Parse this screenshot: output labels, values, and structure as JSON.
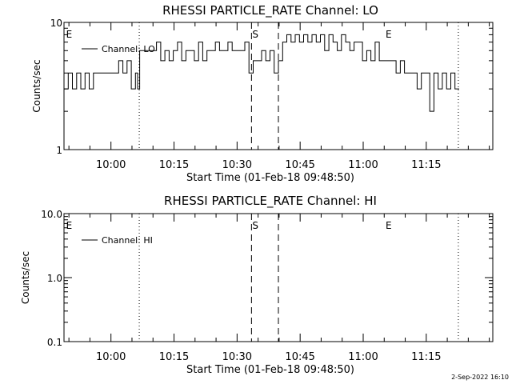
{
  "stamp": "2-Sep-2022 16:10",
  "chart_data": [
    {
      "type": "line",
      "title": "RHESSI PARTICLE_RATE Channel: LO",
      "xlabel": "Start Time (01-Feb-18 09:48:50)",
      "ylabel": "Counts/sec",
      "yscale": "log",
      "ylim": [
        1,
        10
      ],
      "xlim_min": [
        0,
        102
      ],
      "y_ticks": [
        {
          "v": 1,
          "label": "1"
        },
        {
          "v": 10,
          "label": "10"
        }
      ],
      "x_ticks": [
        {
          "t": 11.17,
          "label": "10:00"
        },
        {
          "t": 26.17,
          "label": "10:15"
        },
        {
          "t": 41.17,
          "label": "10:30"
        },
        {
          "t": 56.17,
          "label": "10:45"
        },
        {
          "t": 71.17,
          "label": "11:00"
        },
        {
          "t": 86.17,
          "label": "11:15"
        }
      ],
      "legend": "Channel: LO",
      "markers": [
        {
          "t": 0.3,
          "label": "E"
        },
        {
          "t": 44.6,
          "label": "S"
        },
        {
          "t": 76.3,
          "label": "E"
        }
      ],
      "dotted_lines": [
        17.9,
        93.8
      ],
      "dashed_lines": [
        44.6,
        51.0
      ],
      "series": [
        {
          "t": [
            0,
            1,
            2,
            3,
            4,
            5,
            6,
            7,
            8,
            9,
            10,
            11,
            12,
            13,
            14,
            15,
            16,
            17,
            17.5,
            18,
            19,
            20,
            21,
            22,
            23,
            24,
            25,
            26,
            27,
            28,
            29,
            30,
            31,
            32,
            33,
            34,
            35,
            36,
            37,
            38,
            39,
            40,
            41,
            42,
            43,
            44,
            45,
            46,
            47,
            48,
            49,
            50,
            51,
            52,
            53,
            54,
            55,
            56,
            57,
            58,
            59,
            60,
            61,
            62,
            63,
            64,
            65,
            66,
            67,
            68,
            69,
            70,
            71,
            72,
            73,
            74,
            75,
            76,
            77,
            78,
            79,
            80,
            81,
            82,
            83,
            84,
            85,
            86,
            87,
            88,
            89,
            90,
            91,
            92,
            93,
            94
          ],
          "y": [
            3,
            4,
            3,
            4,
            3,
            4,
            3,
            4,
            4,
            4,
            4,
            4,
            4,
            5,
            4,
            5,
            3,
            4,
            3,
            6,
            6,
            6,
            6,
            7,
            5,
            6,
            5,
            6,
            7,
            5,
            6,
            6,
            5,
            7,
            5,
            6,
            6,
            7,
            6,
            6,
            7,
            6,
            6,
            6,
            7,
            4,
            5,
            5,
            6,
            5,
            6,
            4,
            5,
            7,
            8,
            7,
            8,
            7,
            8,
            7,
            8,
            7,
            8,
            6,
            8,
            7,
            6,
            8,
            7,
            6,
            7,
            7,
            5,
            6,
            5,
            7,
            5,
            5,
            5,
            5,
            4,
            5,
            4,
            4,
            4,
            3,
            4,
            4,
            2,
            4,
            3,
            4,
            3,
            4,
            3,
            3
          ]
        }
      ]
    },
    {
      "type": "line",
      "title": "RHESSI PARTICLE_RATE Channel: HI",
      "xlabel": "Start Time (01-Feb-18 09:48:50)",
      "ylabel": "Counts/sec",
      "yscale": "log",
      "ylim": [
        0.1,
        10
      ],
      "xlim_min": [
        0,
        102
      ],
      "y_ticks": [
        {
          "v": 0.1,
          "label": "0.1"
        },
        {
          "v": 1,
          "label": "1.0"
        },
        {
          "v": 10,
          "label": "10.0"
        }
      ],
      "x_ticks": [
        {
          "t": 11.17,
          "label": "10:00"
        },
        {
          "t": 26.17,
          "label": "10:15"
        },
        {
          "t": 41.17,
          "label": "10:30"
        },
        {
          "t": 56.17,
          "label": "10:45"
        },
        {
          "t": 71.17,
          "label": "11:00"
        },
        {
          "t": 86.17,
          "label": "11:15"
        }
      ],
      "legend": "Channel: HI",
      "markers": [
        {
          "t": 0.3,
          "label": "E"
        },
        {
          "t": 44.6,
          "label": "S"
        },
        {
          "t": 76.3,
          "label": "E"
        }
      ],
      "dotted_lines": [
        17.9,
        93.8
      ],
      "dashed_lines": [
        44.6,
        51.0
      ],
      "series": []
    }
  ]
}
